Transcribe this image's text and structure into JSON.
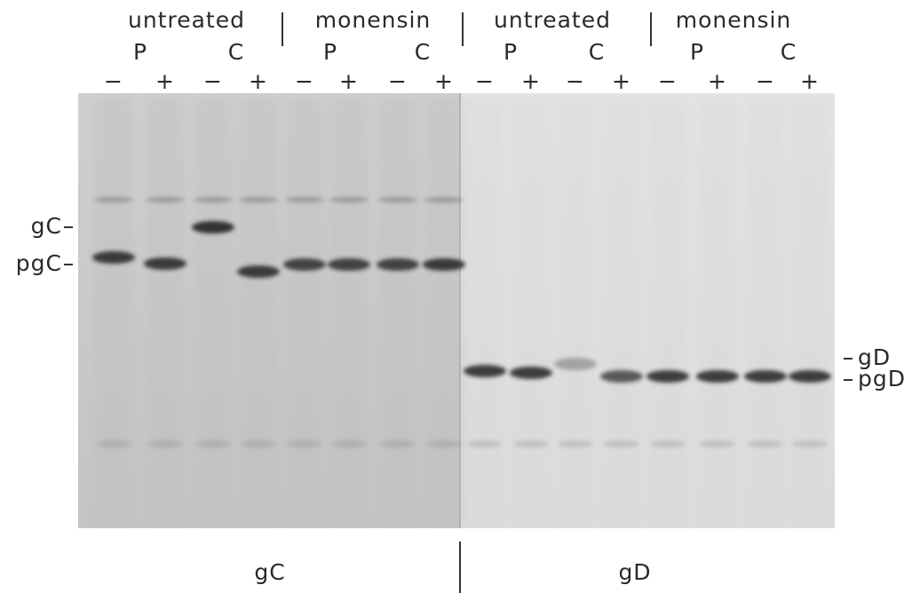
{
  "groups": [
    {
      "label": "untreated",
      "lanes": [
        "P",
        "C"
      ]
    },
    {
      "label": "monensin",
      "lanes": [
        "P",
        "C"
      ]
    },
    {
      "label": "untreated",
      "lanes": [
        "P",
        "C"
      ]
    },
    {
      "label": "monensin",
      "lanes": [
        "P",
        "C"
      ]
    }
  ],
  "lane_signs": [
    "−",
    "+",
    "−",
    "+",
    "−",
    "+",
    "−",
    "+",
    "−",
    "+",
    "−",
    "+",
    "−",
    "+",
    "−",
    "+"
  ],
  "left_markers": [
    "gC",
    "pgC"
  ],
  "right_markers": [
    "gD",
    "pgD"
  ],
  "panels": [
    "gC",
    "gD"
  ]
}
